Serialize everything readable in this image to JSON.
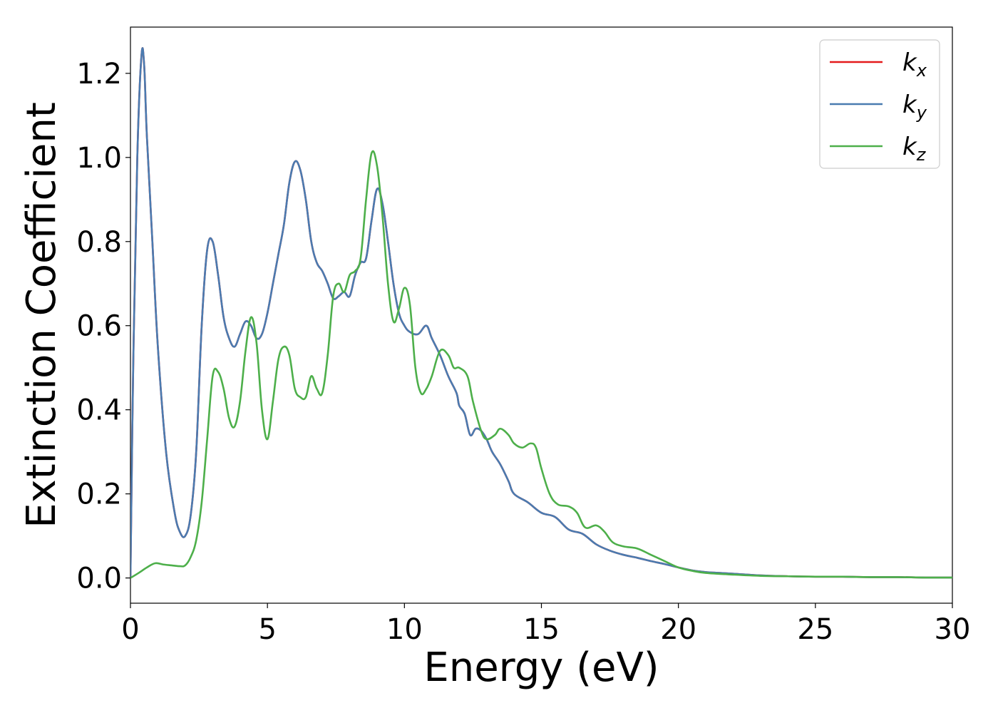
{
  "chart_data": {
    "type": "line",
    "title": "",
    "xlabel": "Energy (eV)",
    "ylabel": "Extinction Coefficient",
    "xlim": [
      0,
      30
    ],
    "ylim": [
      -0.06,
      1.31
    ],
    "xticks": [
      0,
      5,
      10,
      15,
      20,
      25,
      30
    ],
    "xtick_labels": [
      "0",
      "5",
      "10",
      "15",
      "20",
      "25",
      "30"
    ],
    "yticks": [
      0.0,
      0.2,
      0.4,
      0.6,
      0.8,
      1.0,
      1.2
    ],
    "ytick_labels": [
      "0.0",
      "0.2",
      "0.4",
      "0.6",
      "0.8",
      "1.0",
      "1.2"
    ],
    "grid": false,
    "legend_position": "top-right",
    "series": [
      {
        "name": "k",
        "subscript": "x",
        "color": "#e41a1c",
        "x": [
          0,
          0.1,
          0.25,
          0.4,
          0.5,
          0.6,
          0.8,
          1.0,
          1.3,
          1.6,
          1.8,
          2.0,
          2.2,
          2.4,
          2.6,
          2.8,
          3.0,
          3.2,
          3.4,
          3.6,
          3.8,
          4.0,
          4.2,
          4.4,
          4.6,
          4.8,
          5.0,
          5.2,
          5.4,
          5.6,
          5.8,
          6.0,
          6.2,
          6.4,
          6.6,
          6.8,
          7.0,
          7.2,
          7.4,
          7.6,
          7.8,
          8.0,
          8.2,
          8.4,
          8.6,
          8.8,
          9.0,
          9.2,
          9.4,
          9.6,
          9.8,
          10.0,
          10.2,
          10.5,
          10.8,
          11.0,
          11.3,
          11.6,
          11.9,
          12.0,
          12.2,
          12.4,
          12.6,
          12.8,
          13.0,
          13.2,
          13.5,
          13.8,
          14.0,
          14.5,
          15.0,
          15.5,
          16.0,
          16.5,
          17.0,
          17.5,
          18.0,
          18.5,
          19.0,
          19.5,
          20.0,
          20.5,
          21.0,
          21.5,
          22.0,
          23.0,
          24.0,
          25.0,
          26.0,
          27.0,
          28.0,
          29.0,
          30.0
        ],
        "y": [
          0.0,
          0.5,
          1.0,
          1.24,
          1.22,
          1.05,
          0.8,
          0.55,
          0.3,
          0.16,
          0.11,
          0.1,
          0.15,
          0.3,
          0.6,
          0.78,
          0.8,
          0.72,
          0.62,
          0.57,
          0.55,
          0.58,
          0.61,
          0.6,
          0.57,
          0.58,
          0.63,
          0.7,
          0.77,
          0.84,
          0.94,
          0.99,
          0.97,
          0.9,
          0.8,
          0.75,
          0.73,
          0.7,
          0.665,
          0.67,
          0.68,
          0.67,
          0.72,
          0.75,
          0.76,
          0.85,
          0.925,
          0.89,
          0.8,
          0.7,
          0.63,
          0.6,
          0.585,
          0.58,
          0.6,
          0.57,
          0.53,
          0.48,
          0.44,
          0.41,
          0.39,
          0.34,
          0.355,
          0.35,
          0.33,
          0.3,
          0.27,
          0.23,
          0.2,
          0.18,
          0.155,
          0.145,
          0.115,
          0.105,
          0.08,
          0.065,
          0.055,
          0.048,
          0.04,
          0.033,
          0.025,
          0.018,
          0.014,
          0.012,
          0.01,
          0.006,
          0.004,
          0.003,
          0.003,
          0.002,
          0.002,
          0.001,
          0.001
        ]
      },
      {
        "name": "k",
        "subscript": "y",
        "color": "#4a7bb0",
        "x": [
          0,
          0.1,
          0.25,
          0.4,
          0.5,
          0.6,
          0.8,
          1.0,
          1.3,
          1.6,
          1.8,
          2.0,
          2.2,
          2.4,
          2.6,
          2.8,
          3.0,
          3.2,
          3.4,
          3.6,
          3.8,
          4.0,
          4.2,
          4.4,
          4.6,
          4.8,
          5.0,
          5.2,
          5.4,
          5.6,
          5.8,
          6.0,
          6.2,
          6.4,
          6.6,
          6.8,
          7.0,
          7.2,
          7.4,
          7.6,
          7.8,
          8.0,
          8.2,
          8.4,
          8.6,
          8.8,
          9.0,
          9.2,
          9.4,
          9.6,
          9.8,
          10.0,
          10.2,
          10.5,
          10.8,
          11.0,
          11.3,
          11.6,
          11.9,
          12.0,
          12.2,
          12.4,
          12.6,
          12.8,
          13.0,
          13.2,
          13.5,
          13.8,
          14.0,
          14.5,
          15.0,
          15.5,
          16.0,
          16.5,
          17.0,
          17.5,
          18.0,
          18.5,
          19.0,
          19.5,
          20.0,
          20.5,
          21.0,
          21.5,
          22.0,
          23.0,
          24.0,
          25.0,
          26.0,
          27.0,
          28.0,
          29.0,
          30.0
        ],
        "y": [
          0.0,
          0.5,
          1.0,
          1.24,
          1.22,
          1.05,
          0.8,
          0.55,
          0.3,
          0.16,
          0.11,
          0.1,
          0.15,
          0.3,
          0.6,
          0.78,
          0.8,
          0.72,
          0.62,
          0.57,
          0.55,
          0.58,
          0.61,
          0.6,
          0.57,
          0.58,
          0.63,
          0.7,
          0.77,
          0.84,
          0.94,
          0.99,
          0.97,
          0.9,
          0.8,
          0.75,
          0.73,
          0.7,
          0.665,
          0.67,
          0.68,
          0.67,
          0.72,
          0.75,
          0.76,
          0.85,
          0.925,
          0.89,
          0.8,
          0.7,
          0.63,
          0.6,
          0.585,
          0.58,
          0.6,
          0.57,
          0.53,
          0.48,
          0.44,
          0.41,
          0.39,
          0.34,
          0.355,
          0.35,
          0.33,
          0.3,
          0.27,
          0.23,
          0.2,
          0.18,
          0.155,
          0.145,
          0.115,
          0.105,
          0.08,
          0.065,
          0.055,
          0.048,
          0.04,
          0.033,
          0.025,
          0.018,
          0.014,
          0.012,
          0.01,
          0.006,
          0.004,
          0.003,
          0.003,
          0.002,
          0.002,
          0.001,
          0.001
        ]
      },
      {
        "name": "k",
        "subscript": "z",
        "color": "#4daf4a",
        "x": [
          0,
          0.3,
          0.6,
          0.9,
          1.2,
          1.5,
          1.8,
          2.0,
          2.2,
          2.4,
          2.6,
          2.8,
          3.0,
          3.2,
          3.4,
          3.6,
          3.8,
          4.0,
          4.2,
          4.4,
          4.6,
          4.8,
          5.0,
          5.2,
          5.4,
          5.6,
          5.8,
          6.0,
          6.2,
          6.4,
          6.6,
          6.8,
          7.0,
          7.2,
          7.4,
          7.6,
          7.8,
          8.0,
          8.2,
          8.4,
          8.6,
          8.8,
          9.0,
          9.2,
          9.4,
          9.6,
          9.8,
          10.0,
          10.2,
          10.4,
          10.6,
          10.8,
          11.0,
          11.3,
          11.6,
          11.8,
          12.0,
          12.3,
          12.5,
          12.8,
          13.0,
          13.3,
          13.5,
          13.8,
          14.0,
          14.3,
          14.6,
          14.8,
          15.0,
          15.3,
          15.6,
          16.0,
          16.3,
          16.6,
          17.0,
          17.3,
          17.6,
          18.0,
          18.5,
          19.0,
          19.5,
          20.0,
          20.5,
          21.0,
          22.0,
          23.0,
          24.0,
          25.0,
          26.0,
          27.0,
          28.0,
          29.0,
          30.0
        ],
        "y": [
          0.0,
          0.012,
          0.025,
          0.035,
          0.032,
          0.03,
          0.028,
          0.03,
          0.05,
          0.09,
          0.18,
          0.33,
          0.48,
          0.49,
          0.45,
          0.38,
          0.36,
          0.42,
          0.54,
          0.62,
          0.56,
          0.4,
          0.33,
          0.42,
          0.52,
          0.55,
          0.53,
          0.45,
          0.43,
          0.43,
          0.48,
          0.45,
          0.44,
          0.53,
          0.67,
          0.7,
          0.68,
          0.72,
          0.73,
          0.76,
          0.9,
          1.01,
          0.98,
          0.86,
          0.7,
          0.61,
          0.64,
          0.69,
          0.65,
          0.5,
          0.44,
          0.45,
          0.48,
          0.54,
          0.53,
          0.5,
          0.5,
          0.48,
          0.42,
          0.35,
          0.33,
          0.34,
          0.355,
          0.34,
          0.32,
          0.31,
          0.32,
          0.31,
          0.26,
          0.2,
          0.175,
          0.17,
          0.155,
          0.12,
          0.125,
          0.11,
          0.085,
          0.075,
          0.07,
          0.055,
          0.04,
          0.025,
          0.017,
          0.012,
          0.008,
          0.005,
          0.004,
          0.003,
          0.003,
          0.002,
          0.002,
          0.001,
          0.001
        ]
      }
    ]
  }
}
